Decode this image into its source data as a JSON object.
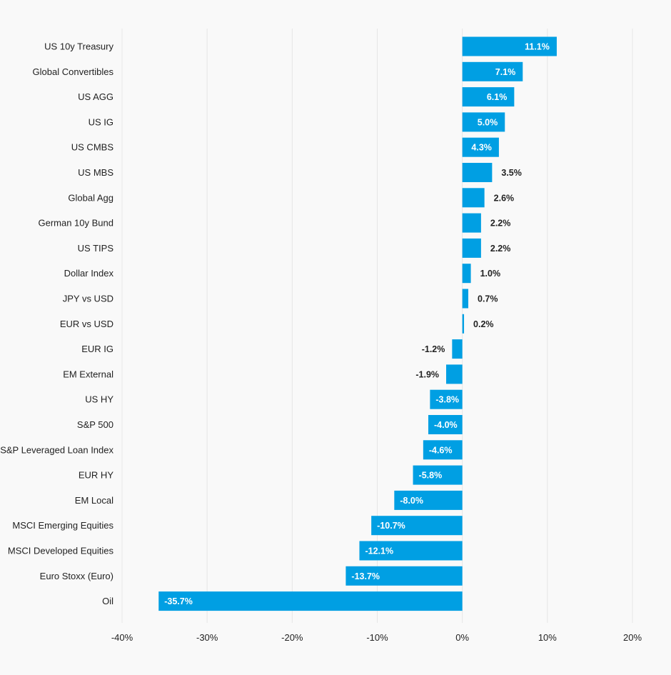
{
  "chart_data": {
    "type": "bar",
    "orientation": "horizontal",
    "title": "",
    "xlabel": "",
    "ylabel": "",
    "xlim": [
      -40,
      20
    ],
    "grid": true,
    "x_ticks": [
      {
        "value": -40,
        "label": "-40%"
      },
      {
        "value": -30,
        "label": "-30%"
      },
      {
        "value": -20,
        "label": "-20%"
      },
      {
        "value": -10,
        "label": "-10%"
      },
      {
        "value": 0,
        "label": "0%"
      },
      {
        "value": 10,
        "label": "10%"
      },
      {
        "value": 20,
        "label": "20%"
      }
    ],
    "bar_color": "#009fe3",
    "categories": [
      "US 10y Treasury",
      "Global Convertibles",
      "US AGG",
      "US IG",
      "US CMBS",
      "US MBS",
      "Global Agg",
      "German 10y Bund",
      "US TIPS",
      "Dollar Index",
      "JPY vs USD",
      "EUR vs USD",
      "EUR IG",
      "EM External",
      "US HY",
      "S&P 500",
      "S&P Leveraged Loan Index",
      "EUR HY",
      "EM Local",
      "MSCI Emerging Equities",
      "MSCI Developed Equities",
      "Euro Stoxx (Euro)",
      "Oil"
    ],
    "values": [
      11.1,
      7.1,
      6.1,
      5.0,
      4.3,
      3.5,
      2.6,
      2.2,
      2.2,
      1.0,
      0.7,
      0.2,
      -1.2,
      -1.9,
      -3.8,
      -4.0,
      -4.6,
      -5.8,
      -8.0,
      -10.7,
      -12.1,
      -13.7,
      -35.7
    ],
    "value_labels": [
      "11.1%",
      "7.1%",
      "6.1%",
      "5.0%",
      "4.3%",
      "3.5%",
      "2.6%",
      "2.2%",
      "2.2%",
      "1.0%",
      "0.7%",
      "0.2%",
      "-1.2%",
      "-1.9%",
      "-3.8%",
      "-4.0%",
      "-4.6%",
      "-5.8%",
      "-8.0%",
      "-10.7%",
      "-12.1%",
      "-13.7%",
      "-35.7%"
    ]
  }
}
